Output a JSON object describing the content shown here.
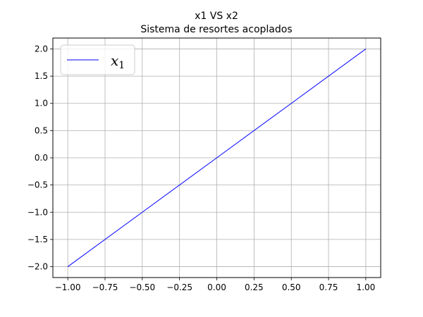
{
  "chart_data": {
    "type": "line",
    "title": "x1 VS x2",
    "subtitle": "Sistema de resortes acoplados",
    "xlabel": "",
    "ylabel": "",
    "xlim": [
      -1.1,
      1.1
    ],
    "ylim": [
      -2.2,
      2.2
    ],
    "xticks": [
      -1.0,
      -0.75,
      -0.5,
      -0.25,
      0.0,
      0.25,
      0.5,
      0.75,
      1.0
    ],
    "xtick_labels": [
      "−1.00",
      "−0.75",
      "−0.50",
      "−0.25",
      "0.00",
      "0.25",
      "0.50",
      "0.75",
      "1.00"
    ],
    "yticks": [
      -2.0,
      -1.5,
      -1.0,
      -0.5,
      0.0,
      0.5,
      1.0,
      1.5,
      2.0
    ],
    "ytick_labels": [
      "−2.0",
      "−1.5",
      "−1.0",
      "−0.5",
      "0.0",
      "0.5",
      "1.0",
      "1.5",
      "2.0"
    ],
    "grid": true,
    "legend_position": "top-left",
    "series": [
      {
        "name": "x",
        "name_subscript": "1",
        "color": "#0000ff",
        "x": [
          -1.0,
          -0.5,
          0.0,
          0.5,
          1.0
        ],
        "y": [
          -2.0,
          -1.0,
          0.0,
          1.0,
          2.0
        ]
      }
    ]
  }
}
